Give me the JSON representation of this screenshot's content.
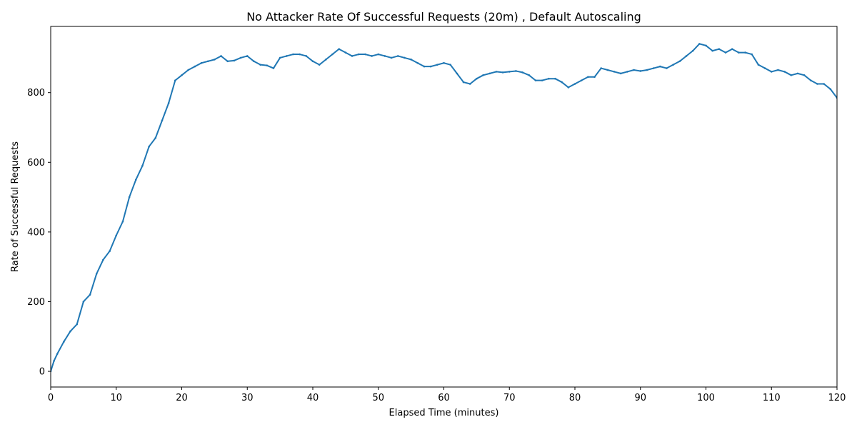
{
  "chart_data": {
    "type": "line",
    "title": "No Attacker Rate Of Successful Requests (20m) , Default Autoscaling",
    "xlabel": "Elapsed Time (minutes)",
    "ylabel": "Rate of Successful Requests",
    "xlim": [
      0,
      120
    ],
    "ylim": [
      -45,
      990
    ],
    "x_ticks": [
      0,
      10,
      20,
      30,
      40,
      50,
      60,
      70,
      80,
      90,
      100,
      110,
      120
    ],
    "y_ticks": [
      0,
      200,
      400,
      600,
      800
    ],
    "grid": false,
    "colors": {
      "line": "#1f77b4"
    },
    "series": [
      {
        "x": [
          0,
          0.5,
          1,
          2,
          3,
          4,
          5,
          6,
          7,
          8,
          9,
          10,
          11,
          12,
          13,
          14,
          15,
          16,
          17,
          18,
          19,
          20,
          21,
          22,
          23,
          24,
          25,
          26,
          27,
          28,
          29,
          30,
          31,
          32,
          33,
          34,
          35,
          36,
          37,
          38,
          39,
          40,
          41,
          42,
          43,
          44,
          45,
          46,
          47,
          48,
          49,
          50,
          51,
          52,
          53,
          54,
          55,
          56,
          57,
          58,
          59,
          60,
          61,
          62,
          63,
          64,
          65,
          66,
          67,
          68,
          69,
          70,
          71,
          72,
          73,
          74,
          75,
          76,
          77,
          78,
          79,
          80,
          81,
          82,
          83,
          84,
          85,
          86,
          87,
          88,
          89,
          90,
          91,
          92,
          93,
          94,
          95,
          96,
          97,
          98,
          99,
          100,
          101,
          102,
          103,
          104,
          105,
          106,
          107,
          108,
          109,
          110,
          111,
          112,
          113,
          114,
          115,
          116,
          117,
          118,
          119,
          120
        ],
        "values": [
          0,
          30,
          50,
          85,
          115,
          135,
          200,
          220,
          280,
          320,
          345,
          390,
          430,
          500,
          550,
          590,
          645,
          670,
          720,
          770,
          835,
          850,
          865,
          875,
          885,
          890,
          895,
          905,
          890,
          892,
          900,
          905,
          890,
          880,
          878,
          870,
          900,
          905,
          910,
          910,
          905,
          890,
          880,
          895,
          910,
          925,
          915,
          905,
          910,
          910,
          905,
          910,
          905,
          900,
          905,
          900,
          895,
          885,
          875,
          875,
          880,
          885,
          880,
          855,
          830,
          825,
          840,
          850,
          855,
          860,
          858,
          860,
          862,
          858,
          850,
          835,
          835,
          840,
          840,
          830,
          815,
          825,
          835,
          845,
          845,
          870,
          865,
          860,
          855,
          860,
          865,
          862,
          865,
          870,
          875,
          870,
          880,
          890,
          905,
          920,
          940,
          935,
          920,
          925,
          915,
          925,
          915,
          915,
          910,
          880,
          870,
          860,
          865,
          860,
          850,
          855,
          850,
          835,
          825,
          825,
          810,
          785
        ]
      }
    ]
  }
}
